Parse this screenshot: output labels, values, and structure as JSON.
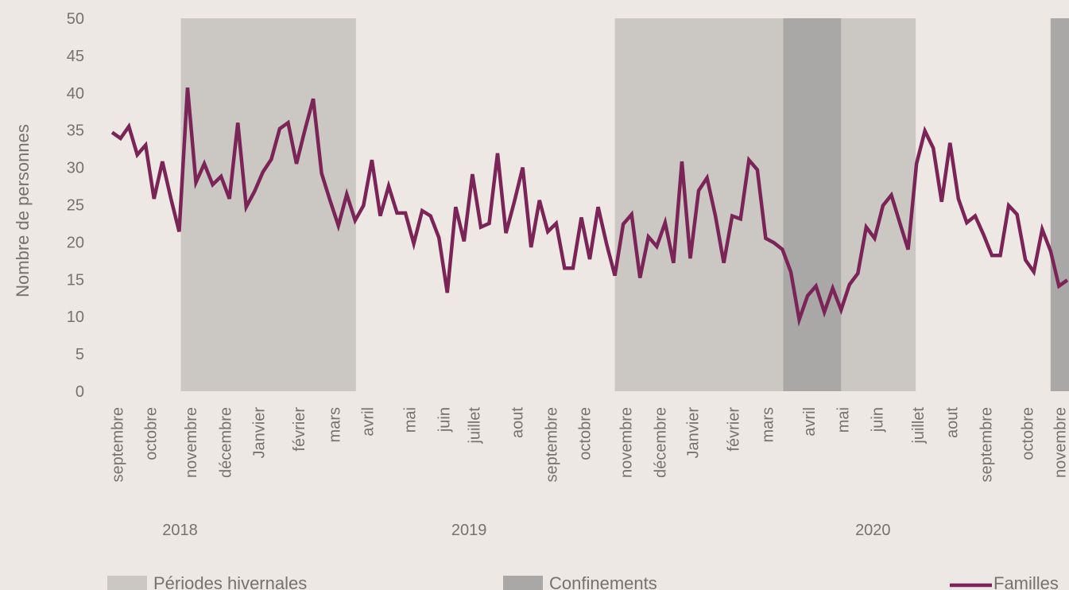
{
  "chart_data": {
    "type": "line",
    "ylabel": "Nombre de personnes",
    "ylim": [
      0,
      50
    ],
    "yticks": [
      0,
      5,
      10,
      15,
      20,
      25,
      30,
      35,
      40,
      45,
      50
    ],
    "xlim": [
      -2,
      114.2
    ],
    "xticks": [
      {
        "value": 0.6,
        "label": "septembre"
      },
      {
        "value": 4.6,
        "label": "octobre"
      },
      {
        "value": 9.4,
        "label": "novembre"
      },
      {
        "value": 13.5,
        "label": "décembre"
      },
      {
        "value": 17.5,
        "label": "Janvier"
      },
      {
        "value": 22.3,
        "label": "février"
      },
      {
        "value": 26.5,
        "label": "mars"
      },
      {
        "value": 30.5,
        "label": "avril"
      },
      {
        "value": 35.5,
        "label": "mai"
      },
      {
        "value": 39.6,
        "label": "juin"
      },
      {
        "value": 43.2,
        "label": "juillet"
      },
      {
        "value": 48.3,
        "label": "aout"
      },
      {
        "value": 52.4,
        "label": "septembre"
      },
      {
        "value": 56.4,
        "label": "octobre"
      },
      {
        "value": 61.3,
        "label": "novembre"
      },
      {
        "value": 65.4,
        "label": "décembre"
      },
      {
        "value": 69.3,
        "label": "Janvier"
      },
      {
        "value": 74.1,
        "label": "février"
      },
      {
        "value": 78.2,
        "label": "mars"
      },
      {
        "value": 83.2,
        "label": "avril"
      },
      {
        "value": 87.2,
        "label": "mai"
      },
      {
        "value": 91.3,
        "label": "juin"
      },
      {
        "value": 96.2,
        "label": "juillet"
      },
      {
        "value": 100.2,
        "label": "aout"
      },
      {
        "value": 104.3,
        "label": "septembre"
      },
      {
        "value": 109.2,
        "label": "octobre"
      },
      {
        "value": 113.1,
        "label": "novembre"
      }
    ],
    "year_ticks": [
      {
        "value": 8.1,
        "label": "2018"
      },
      {
        "value": 42.6,
        "label": "2019"
      },
      {
        "value": 90.8,
        "label": "2020"
      }
    ],
    "bands": [
      {
        "name": "Périodes hivernales",
        "color": "#cbc7c2",
        "spans": [
          [
            8.2,
            29.1
          ],
          [
            60,
            95.9
          ]
        ]
      },
      {
        "name": "Confinements",
        "color": "#aaa8a7",
        "spans": [
          [
            80.1,
            87
          ],
          [
            112,
            114.2
          ]
        ]
      }
    ],
    "x": [
      0,
      1,
      2,
      3,
      4,
      5,
      6,
      7,
      8,
      9,
      10,
      11,
      12,
      13,
      14,
      15,
      16,
      17,
      18,
      19,
      20,
      21,
      22,
      23,
      24,
      25,
      26,
      27,
      28,
      29,
      30,
      31,
      32,
      33,
      34,
      35,
      36,
      37,
      38,
      39,
      40,
      41,
      42,
      43,
      44,
      45,
      46,
      47,
      48,
      49,
      50,
      51,
      52,
      53,
      54,
      55,
      56,
      57,
      58,
      59,
      60,
      61,
      62,
      63,
      64,
      65,
      66,
      67,
      68,
      69,
      70,
      71,
      72,
      73,
      74,
      75,
      76,
      77,
      78,
      79,
      80,
      81,
      82,
      83,
      84,
      85,
      86,
      87,
      88,
      89,
      90,
      91,
      92,
      93,
      94,
      95,
      96,
      97,
      98,
      99,
      100,
      101,
      102,
      103,
      104,
      105,
      106,
      107,
      108,
      109,
      110,
      111,
      112,
      113,
      114
    ],
    "series": [
      {
        "name": "Familles",
        "color": "#7a2458",
        "values": [
          34.7,
          33.9,
          35.5,
          31.7,
          33,
          25.8,
          30.8,
          25.9,
          21.4,
          40.7,
          28,
          30.5,
          27.7,
          28.8,
          25.8,
          36,
          24.7,
          26.8,
          29.4,
          31.1,
          35.2,
          36,
          30.5,
          35,
          39.2,
          29.2,
          25.6,
          22.2,
          26.4,
          22.9,
          24.9,
          31,
          23.5,
          27.5,
          23.9,
          23.9,
          19.8,
          24.2,
          23.5,
          20.6,
          13.2,
          24.7,
          20.1,
          29.1,
          22,
          22.5,
          31.9,
          21.2,
          25.4,
          30,
          19.3,
          25.6,
          21.4,
          22.5,
          16.5,
          16.5,
          23.3,
          17.7,
          24.7,
          19.8,
          15.5,
          22.4,
          23.7,
          15.2,
          20.7,
          19.4,
          22.6,
          17.2,
          30.8,
          17.8,
          26.9,
          28.6,
          23.5,
          17.2,
          23.5,
          23.1,
          31,
          29.7,
          20.5,
          19.9,
          19,
          16,
          9.6,
          12.8,
          14.1,
          10.6,
          13.8,
          10.9,
          14.3,
          15.8,
          22,
          20.5,
          24.9,
          26.3,
          22.6,
          19,
          30.5,
          34.9,
          32.6,
          25.4,
          33.3,
          25.8,
          22.6,
          23.5,
          21,
          18.2,
          18.2,
          24.9,
          23.7,
          17.6,
          16,
          21.7,
          18.8,
          14.1,
          14.9
        ]
      }
    ]
  }
}
